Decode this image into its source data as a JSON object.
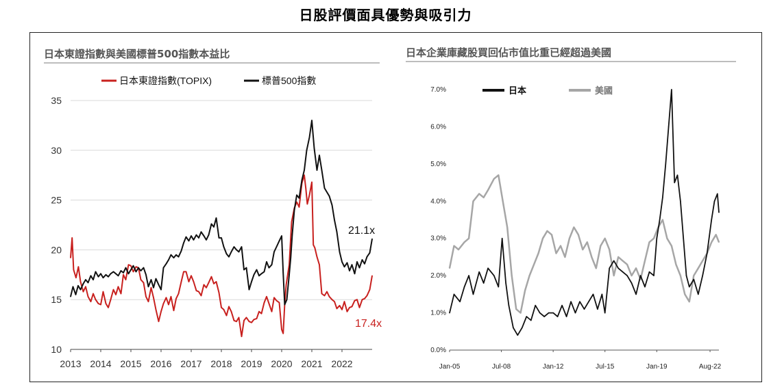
{
  "page": {
    "title": "日股評價面具優勢與吸引力"
  },
  "chart_data": [
    {
      "type": "line",
      "title": "日本東證指數與美國標普500指數本益比",
      "xlabel": "",
      "ylabel": "",
      "x_ticks": [
        "2013",
        "2014",
        "2015",
        "2016",
        "2017",
        "2018",
        "2019",
        "2020",
        "2021",
        "2022"
      ],
      "y_ticks": [
        "10",
        "15",
        "20",
        "25",
        "30",
        "35"
      ],
      "xlim": [
        2013.0,
        2023.0
      ],
      "ylim": [
        10,
        35
      ],
      "grid": "horizontal",
      "legend": "top-center",
      "annotations": [
        {
          "text": "21.1x",
          "series": "標普500指數"
        },
        {
          "text": "17.4x",
          "series": "日本東證指數(TOPIX)"
        }
      ],
      "series": [
        {
          "name": "日本東證指數(TOPIX)",
          "color": "#c8201e",
          "x": [
            2013.0,
            2013.05,
            2013.1,
            2013.18,
            2013.26,
            2013.33,
            2013.42,
            2013.5,
            2013.58,
            2013.67,
            2013.75,
            2013.83,
            2013.92,
            2014.0,
            2014.08,
            2014.17,
            2014.25,
            2014.33,
            2014.42,
            2014.5,
            2014.58,
            2014.67,
            2014.75,
            2014.83,
            2014.92,
            2015.0,
            2015.08,
            2015.17,
            2015.25,
            2015.33,
            2015.42,
            2015.5,
            2015.58,
            2015.67,
            2015.75,
            2015.83,
            2015.92,
            2016.0,
            2016.08,
            2016.17,
            2016.25,
            2016.33,
            2016.42,
            2016.5,
            2016.58,
            2016.67,
            2016.75,
            2016.83,
            2016.92,
            2017.0,
            2017.08,
            2017.17,
            2017.25,
            2017.33,
            2017.42,
            2017.5,
            2017.58,
            2017.67,
            2017.75,
            2017.83,
            2017.92,
            2018.0,
            2018.08,
            2018.17,
            2018.25,
            2018.33,
            2018.42,
            2018.5,
            2018.58,
            2018.67,
            2018.75,
            2018.83,
            2018.92,
            2019.0,
            2019.08,
            2019.17,
            2019.25,
            2019.33,
            2019.42,
            2019.5,
            2019.58,
            2019.67,
            2019.75,
            2019.83,
            2019.92,
            2020.0,
            2020.05,
            2020.1,
            2020.15,
            2020.2,
            2020.25,
            2020.33,
            2020.42,
            2020.5,
            2020.58,
            2020.67,
            2020.75,
            2020.8,
            2020.85,
            2020.92,
            2021.0,
            2021.05,
            2021.1,
            2021.17,
            2021.25,
            2021.33,
            2021.42,
            2021.5,
            2021.58,
            2021.67,
            2021.75,
            2021.83,
            2021.92,
            2022.0,
            2022.08,
            2022.17,
            2022.25,
            2022.33,
            2022.42,
            2022.5,
            2022.58,
            2022.67,
            2022.75,
            2022.83,
            2022.92,
            2023.0
          ],
          "values": [
            19.2,
            21.2,
            18.0,
            17.2,
            18.3,
            16.8,
            15.8,
            16.3,
            15.3,
            14.8,
            15.6,
            15.0,
            14.6,
            14.5,
            15.8,
            14.6,
            14.2,
            15.0,
            16.0,
            15.5,
            16.3,
            15.6,
            17.5,
            17.0,
            18.5,
            18.4,
            17.8,
            18.3,
            18.2,
            17.0,
            16.7,
            15.3,
            14.8,
            16.2,
            15.2,
            14.0,
            12.8,
            13.8,
            14.6,
            15.2,
            14.5,
            15.3,
            13.9,
            15.1,
            15.6,
            16.8,
            17.8,
            17.8,
            16.8,
            17.4,
            16.8,
            15.9,
            15.8,
            15.4,
            16.5,
            16.2,
            16.7,
            17.3,
            16.6,
            16.8,
            15.7,
            14.2,
            14.0,
            13.4,
            14.3,
            13.8,
            12.9,
            12.8,
            13.2,
            11.3,
            12.9,
            13.2,
            12.8,
            12.7,
            13.0,
            13.1,
            13.8,
            13.6,
            14.7,
            15.3,
            14.6,
            13.8,
            15.2,
            14.9,
            14.7,
            12.0,
            11.6,
            14.5,
            16.5,
            17.5,
            18.5,
            22.8,
            24.2,
            24.8,
            24.3,
            26.7,
            27.5,
            26.2,
            24.6,
            25.5,
            26.8,
            20.5,
            20.2,
            19.3,
            18.5,
            15.6,
            15.4,
            15.8,
            15.3,
            15.0,
            14.8,
            14.1,
            14.4,
            14.0,
            14.8,
            13.8,
            14.2,
            14.3,
            14.9,
            15.0,
            14.2,
            15.0,
            15.1,
            15.4,
            16.0,
            17.4
          ]
        },
        {
          "name": "標普500指數",
          "color": "#111111",
          "x": [
            2013.0,
            2013.08,
            2013.17,
            2013.25,
            2013.33,
            2013.42,
            2013.5,
            2013.58,
            2013.67,
            2013.75,
            2013.83,
            2013.92,
            2014.0,
            2014.08,
            2014.17,
            2014.25,
            2014.33,
            2014.42,
            2014.5,
            2014.58,
            2014.67,
            2014.75,
            2014.83,
            2014.92,
            2015.0,
            2015.08,
            2015.17,
            2015.25,
            2015.33,
            2015.42,
            2015.5,
            2015.58,
            2015.67,
            2015.75,
            2015.83,
            2015.92,
            2016.0,
            2016.08,
            2016.17,
            2016.25,
            2016.33,
            2016.42,
            2016.5,
            2016.58,
            2016.67,
            2016.75,
            2016.83,
            2016.92,
            2017.0,
            2017.08,
            2017.17,
            2017.25,
            2017.33,
            2017.42,
            2017.5,
            2017.58,
            2017.67,
            2017.75,
            2017.83,
            2017.92,
            2018.0,
            2018.08,
            2018.17,
            2018.25,
            2018.33,
            2018.42,
            2018.5,
            2018.58,
            2018.67,
            2018.75,
            2018.83,
            2018.92,
            2019.0,
            2019.08,
            2019.17,
            2019.25,
            2019.33,
            2019.42,
            2019.5,
            2019.58,
            2019.67,
            2019.75,
            2019.83,
            2019.92,
            2020.0,
            2020.05,
            2020.1,
            2020.17,
            2020.25,
            2020.3,
            2020.35,
            2020.42,
            2020.5,
            2020.58,
            2020.67,
            2020.75,
            2020.83,
            2020.92,
            2021.0,
            2021.08,
            2021.17,
            2021.25,
            2021.33,
            2021.42,
            2021.5,
            2021.58,
            2021.67,
            2021.75,
            2021.83,
            2021.92,
            2022.0,
            2022.08,
            2022.17,
            2022.25,
            2022.33,
            2022.42,
            2022.5,
            2022.58,
            2022.67,
            2022.75,
            2022.83,
            2022.92,
            2023.0
          ],
          "values": [
            15.3,
            16.3,
            15.5,
            16.4,
            16.0,
            16.6,
            17.0,
            16.7,
            17.4,
            17.0,
            17.8,
            17.3,
            17.6,
            17.2,
            17.5,
            17.3,
            17.6,
            17.8,
            17.6,
            17.4,
            17.9,
            17.7,
            18.2,
            17.6,
            18.0,
            18.4,
            17.8,
            18.2,
            17.9,
            18.2,
            17.5,
            16.3,
            17.0,
            16.2,
            17.1,
            16.5,
            16.0,
            18.2,
            18.6,
            19.0,
            19.5,
            19.2,
            19.5,
            19.3,
            19.9,
            20.7,
            21.3,
            20.9,
            21.4,
            21.0,
            21.5,
            21.2,
            21.8,
            21.4,
            21.0,
            21.5,
            22.6,
            22.3,
            23.2,
            21.2,
            21.2,
            20.3,
            19.6,
            19.3,
            19.8,
            20.3,
            20.0,
            19.8,
            20.3,
            18.0,
            18.2,
            16.0,
            16.8,
            17.5,
            18.0,
            17.4,
            17.6,
            17.8,
            18.8,
            18.2,
            18.5,
            19.8,
            20.3,
            20.9,
            21.4,
            17.7,
            14.5,
            15.0,
            17.5,
            19.2,
            21.5,
            24.0,
            25.5,
            25.2,
            27.0,
            28.0,
            30.0,
            31.3,
            33.0,
            30.2,
            28.0,
            29.5,
            28.0,
            26.2,
            25.8,
            25.4,
            24.5,
            23.0,
            21.8,
            19.8,
            18.8,
            18.3,
            18.7,
            17.9,
            18.5,
            17.6,
            18.8,
            18.2,
            19.0,
            18.6,
            19.3,
            19.7,
            21.1
          ]
        }
      ]
    },
    {
      "type": "line",
      "title": "日本企業庫藏股買回佔市值比重已經超過美國",
      "xlabel": "",
      "ylabel": "",
      "x_ticks": [
        "Jan-05",
        "Jul-08",
        "Jan-12",
        "Jul-15",
        "Jan-19",
        "Aug-22"
      ],
      "y_ticks": [
        "0.0%",
        "1.0%",
        "2.0%",
        "3.0%",
        "4.0%",
        "5.0%",
        "6.0%",
        "7.0%"
      ],
      "xlim": [
        2005.0,
        2023.2
      ],
      "ylim": [
        0,
        7
      ],
      "grid": "none",
      "legend": "top-left",
      "series": [
        {
          "name": "日本",
          "color": "#111111",
          "x": [
            2005.0,
            2005.3,
            2005.7,
            2006.0,
            2006.3,
            2006.6,
            2007.0,
            2007.3,
            2007.6,
            2008.0,
            2008.3,
            2008.55,
            2008.8,
            2009.0,
            2009.3,
            2009.6,
            2009.9,
            2010.2,
            2010.5,
            2010.8,
            2011.1,
            2011.4,
            2011.7,
            2012.0,
            2012.3,
            2012.6,
            2012.9,
            2013.2,
            2013.5,
            2013.8,
            2014.1,
            2014.4,
            2014.7,
            2015.0,
            2015.3,
            2015.5,
            2015.8,
            2016.1,
            2016.4,
            2016.7,
            2017.0,
            2017.3,
            2017.6,
            2017.9,
            2018.2,
            2018.5,
            2018.8,
            2019.0,
            2019.2,
            2019.4,
            2019.6,
            2019.8,
            2020.0,
            2020.2,
            2020.4,
            2020.6,
            2020.8,
            2021.0,
            2021.2,
            2021.5,
            2021.8,
            2022.1,
            2022.4,
            2022.7,
            2022.9,
            2023.1,
            2023.2
          ],
          "values": [
            1.0,
            1.5,
            1.3,
            1.7,
            2.0,
            1.5,
            2.1,
            1.8,
            2.2,
            2.0,
            1.7,
            3.0,
            1.8,
            1.2,
            0.6,
            0.4,
            0.6,
            0.9,
            0.8,
            1.2,
            1.0,
            0.9,
            1.0,
            1.0,
            0.9,
            1.2,
            0.9,
            1.3,
            1.0,
            1.3,
            1.1,
            1.3,
            1.5,
            1.1,
            1.5,
            1.0,
            2.2,
            2.4,
            2.2,
            2.1,
            2.0,
            1.8,
            1.5,
            2.0,
            1.7,
            2.1,
            2.0,
            3.0,
            3.5,
            4.1,
            5.0,
            6.0,
            7.0,
            4.5,
            4.7,
            4.0,
            3.0,
            2.0,
            1.7,
            1.9,
            1.5,
            2.0,
            2.6,
            3.5,
            4.0,
            4.2,
            3.7
          ]
        },
        {
          "name": "美國",
          "color": "#a6a6a6",
          "x": [
            2005.0,
            2005.3,
            2005.6,
            2006.0,
            2006.3,
            2006.6,
            2007.0,
            2007.3,
            2007.6,
            2008.0,
            2008.3,
            2008.6,
            2008.9,
            2009.2,
            2009.5,
            2009.8,
            2010.1,
            2010.4,
            2010.7,
            2011.0,
            2011.3,
            2011.6,
            2011.9,
            2012.2,
            2012.5,
            2012.8,
            2013.1,
            2013.4,
            2013.7,
            2014.0,
            2014.3,
            2014.6,
            2014.9,
            2015.2,
            2015.5,
            2015.8,
            2016.1,
            2016.4,
            2016.7,
            2017.0,
            2017.3,
            2017.6,
            2017.9,
            2018.2,
            2018.5,
            2018.8,
            2019.1,
            2019.4,
            2019.7,
            2020.0,
            2020.3,
            2020.6,
            2020.9,
            2021.2,
            2021.5,
            2021.8,
            2022.1,
            2022.4,
            2022.7,
            2023.0,
            2023.2
          ],
          "values": [
            2.2,
            2.8,
            2.7,
            2.9,
            3.0,
            4.0,
            4.2,
            4.1,
            4.3,
            4.6,
            4.7,
            4.0,
            3.3,
            2.0,
            1.1,
            1.0,
            1.6,
            2.0,
            2.3,
            2.6,
            3.0,
            3.2,
            3.1,
            2.6,
            2.8,
            2.5,
            3.0,
            3.3,
            3.1,
            2.7,
            2.9,
            2.5,
            2.2,
            2.8,
            3.0,
            2.7,
            2.0,
            2.5,
            2.4,
            2.3,
            2.0,
            2.2,
            1.9,
            2.4,
            2.9,
            3.0,
            3.3,
            3.5,
            3.0,
            2.8,
            2.3,
            2.0,
            1.5,
            1.3,
            2.0,
            2.2,
            2.4,
            2.6,
            2.9,
            3.1,
            2.9
          ]
        }
      ]
    }
  ]
}
